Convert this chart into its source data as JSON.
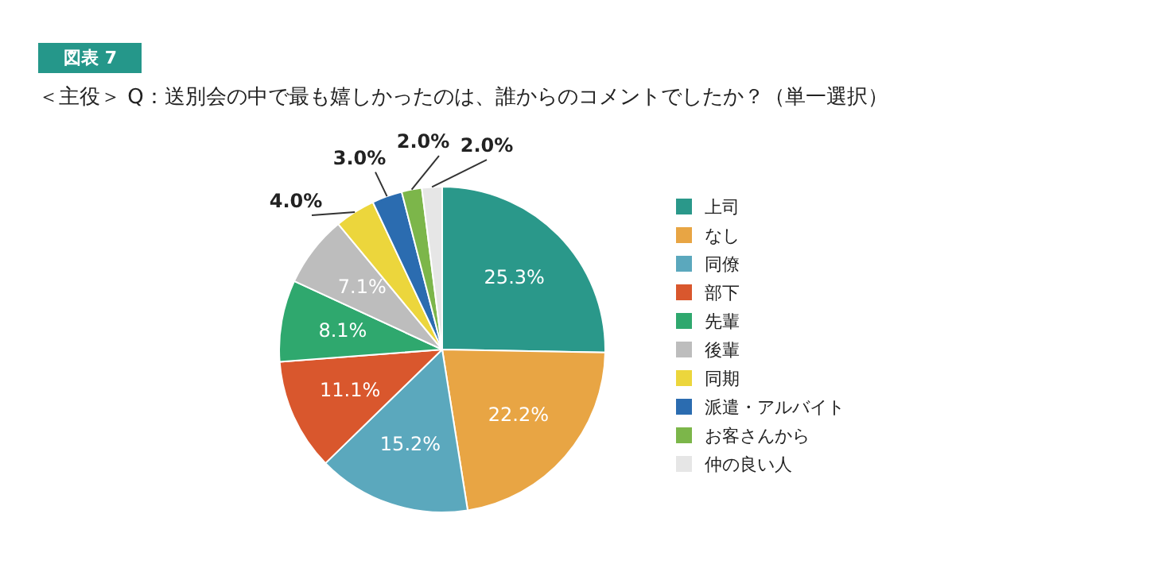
{
  "chart_data": {
    "type": "pie",
    "title": "＜主役＞ Q：送別会の中で最も嬉しかったのは、誰からのコメントでしたか？（単一選択）",
    "annotations": [
      "図表 7"
    ],
    "categories": [
      "上司",
      "なし",
      "同僚",
      "部下",
      "先輩",
      "後輩",
      "同期",
      "派遣・アルバイト",
      "お客さんから",
      "仲の良い人"
    ],
    "values": [
      25.3,
      22.2,
      15.2,
      11.1,
      8.1,
      7.1,
      4.0,
      3.0,
      2.0,
      2.0
    ],
    "colors": [
      "#2a988a",
      "#e8a544",
      "#5ba8bd",
      "#d9572d",
      "#2fa86e",
      "#bdbdbd",
      "#ecd63c",
      "#2b6cb0",
      "#7cb64a",
      "#e6e6e6"
    ],
    "value_labels": [
      "25.3%",
      "22.2%",
      "15.2%",
      "11.1%",
      "8.1%",
      "7.1%",
      "4.0%",
      "3.0%",
      "2.0%",
      "2.0%"
    ],
    "legend": "right"
  }
}
